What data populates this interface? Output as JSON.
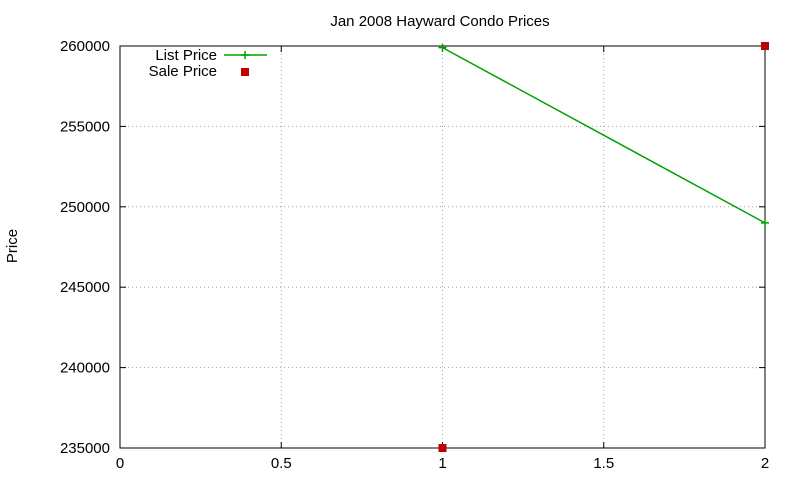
{
  "chart_data": {
    "type": "line",
    "title": "Jan 2008 Hayward Condo Prices",
    "xlabel": "",
    "ylabel": "Price",
    "xlim": [
      0,
      2
    ],
    "ylim": [
      235000,
      260000
    ],
    "x_ticks": [
      0,
      0.5,
      1,
      1.5,
      2
    ],
    "x_tick_labels": [
      "0",
      "0.5",
      "1",
      "1.5",
      "2"
    ],
    "y_ticks": [
      235000,
      240000,
      245000,
      250000,
      255000,
      260000
    ],
    "y_tick_labels": [
      "235000",
      "240000",
      "245000",
      "250000",
      "255000",
      "260000"
    ],
    "grid": true,
    "legend_position": "top-left",
    "series": [
      {
        "name": "List Price",
        "style": "linespoints",
        "marker": "plus",
        "color": "#00a000",
        "points": [
          [
            1,
            259900
          ],
          [
            2,
            249000
          ]
        ]
      },
      {
        "name": "Sale Price",
        "style": "points",
        "marker": "square",
        "color": "#c00000",
        "points": [
          [
            1,
            235000
          ],
          [
            2,
            260000
          ]
        ]
      }
    ]
  }
}
